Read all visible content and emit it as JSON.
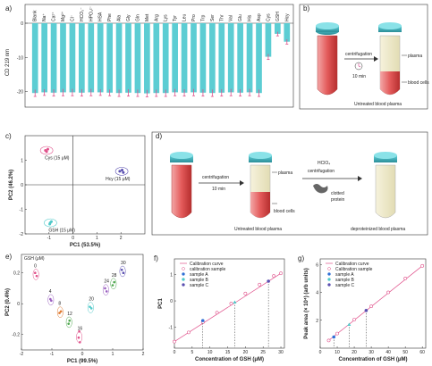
{
  "figure": {
    "panels": {
      "a": {
        "label": "a)"
      },
      "b": {
        "label": "b)",
        "text_centrifugation": "centrifugation",
        "text_time": "10 min",
        "text_plasma": "plasma",
        "text_cells": "blood cells",
        "caption": "Untreated blood plasma"
      },
      "c": {
        "label": "c)"
      },
      "d": {
        "label": "d)",
        "text_centrifugation": "centrifugation",
        "text_time": "10 min",
        "text_plasma": "plasma",
        "text_cells": "blood cells",
        "caption1": "Untreated blood plasma",
        "text_hclo4": "HClO₄",
        "text_centrifugation2": "centrifugation",
        "text_clotted": "clotted",
        "text_protein": "protein",
        "caption2": "deproteinized blood plasma"
      },
      "e": {
        "label": "e)"
      },
      "f": {
        "label": "f)"
      },
      "g": {
        "label": "g)"
      }
    }
  },
  "chart_data": [
    {
      "panel": "a",
      "type": "bar",
      "ylabel": "CD 219 nm",
      "categories": [
        "Blank",
        "Na⁺",
        "Ca²⁺",
        "Mg²⁺",
        "Cl⁻",
        "HCO₃⁻",
        "HPO₄²⁻",
        "HSA",
        "Phe",
        "Ala",
        "Gly",
        "Gln",
        "Met",
        "Arg",
        "Lys",
        "Tyr",
        "Leu",
        "Pro",
        "Trp",
        "Ser",
        "Thr",
        "Val",
        "Glu",
        "His",
        "Asp",
        "Cys",
        "GSH",
        "Hcy"
      ],
      "values": [
        -20.4,
        -20.2,
        -20.3,
        -20.2,
        -20.2,
        -20.3,
        -20.2,
        -20.2,
        -20.3,
        -20.4,
        -20.3,
        -20.4,
        -20.5,
        -20.4,
        -20.4,
        -20.2,
        -20.3,
        -20.2,
        -20.3,
        -20.4,
        -20.3,
        -20.2,
        -20.3,
        -20.2,
        -20.4,
        -9.8,
        -3.1,
        -5.4
      ],
      "errors": [
        1.0,
        0.9,
        1.0,
        1.0,
        1.0,
        1.0,
        1.0,
        0.9,
        0.9,
        1.0,
        1.0,
        1.0,
        1.0,
        1.0,
        1.0,
        1.0,
        1.0,
        1.0,
        1.0,
        1.0,
        1.0,
        1.0,
        1.0,
        1.0,
        1.0,
        0.8,
        0.6,
        0.7
      ],
      "ylim": [
        -24,
        0
      ],
      "yticks": [
        0,
        -10,
        -20
      ],
      "bar_color": "#5ccdd3",
      "error_color": "#e0508a"
    },
    {
      "panel": "c",
      "type": "scatter",
      "xlabel": "PC1 (53.5%)",
      "ylabel": "PC2 (46.2%)",
      "xlim": [
        -2,
        3
      ],
      "ylim": [
        -2,
        2
      ],
      "xticks": [
        -1,
        0,
        1,
        2
      ],
      "yticks": [
        -2,
        -1,
        0,
        1
      ],
      "groups": [
        {
          "name": "Cys (15 μM)",
          "color": "#e0508a",
          "points": [
            [
              -1.15,
              1.4
            ],
            [
              -1.05,
              1.45
            ],
            [
              -1.1,
              1.35
            ]
          ]
        },
        {
          "name": "Hcy (15 μM)",
          "color": "#5a4fb0",
          "points": [
            [
              1.95,
              0.55
            ],
            [
              2.05,
              0.6
            ],
            [
              2.1,
              0.5
            ]
          ]
        },
        {
          "name": "GSH (15 μM)",
          "color": "#4fc9c9",
          "points": [
            [
              -0.95,
              -1.55
            ],
            [
              -0.9,
              -1.5
            ],
            [
              -0.97,
              -1.6
            ]
          ]
        }
      ]
    },
    {
      "panel": "e",
      "type": "scatter",
      "title": "GSH (μM)",
      "xlabel": "PC1 (99.5%)",
      "ylabel": "PC2 (0.4%)",
      "xlim": [
        -2,
        2
      ],
      "ylim": [
        -0.3,
        0.32
      ],
      "xticks": [
        -2,
        -1,
        0,
        1,
        2
      ],
      "yticks": [
        -0.2,
        0.0,
        0.2
      ],
      "groups": [
        {
          "name": "0",
          "color": "#e0508a",
          "points": [
            [
              -1.55,
              0.2
            ],
            [
              -1.5,
              0.18
            ]
          ]
        },
        {
          "name": "4",
          "color": "#9a5fc0",
          "points": [
            [
              -1.05,
              0.03
            ],
            [
              -1.02,
              0.02
            ]
          ]
        },
        {
          "name": "8",
          "color": "#e07a30",
          "points": [
            [
              -0.75,
              -0.06
            ],
            [
              -0.7,
              -0.05
            ]
          ]
        },
        {
          "name": "12",
          "color": "#4fa84f",
          "points": [
            [
              -0.45,
              -0.13
            ],
            [
              -0.42,
              -0.11
            ]
          ]
        },
        {
          "name": "16",
          "color": "#e0508a",
          "points": [
            [
              -0.1,
              -0.18
            ],
            [
              -0.12,
              -0.22
            ],
            [
              -0.08,
              -0.25
            ]
          ]
        },
        {
          "name": "20",
          "color": "#4fc9c9",
          "points": [
            [
              0.25,
              -0.02
            ],
            [
              0.3,
              -0.03
            ]
          ]
        },
        {
          "name": "24",
          "color": "#9a5fc0",
          "points": [
            [
              0.75,
              0.1
            ],
            [
              0.8,
              0.08
            ]
          ]
        },
        {
          "name": "28",
          "color": "#4fa84f",
          "points": [
            [
              1.0,
              0.12
            ],
            [
              1.05,
              0.14
            ]
          ]
        },
        {
          "name": "30",
          "color": "#5a4fb0",
          "points": [
            [
              1.3,
              0.22
            ],
            [
              1.35,
              0.2
            ]
          ]
        }
      ]
    },
    {
      "panel": "f",
      "type": "scatter",
      "xlabel": "Concentration of GSH (μM)",
      "ylabel": "PC1",
      "xlim": [
        0,
        31
      ],
      "ylim": [
        -1.8,
        1.6
      ],
      "xticks": [
        0,
        5,
        10,
        15,
        20,
        25,
        30
      ],
      "yticks": [
        -1,
        0,
        1
      ],
      "legend": [
        "Calibration curve",
        "calibration sample",
        "sample A",
        "sample B",
        "sample C"
      ],
      "calibration_x": [
        0,
        4,
        8,
        12,
        16,
        20,
        24,
        28,
        30
      ],
      "calibration_y": [
        -1.55,
        -1.2,
        -0.82,
        -0.45,
        -0.1,
        0.28,
        0.62,
        0.95,
        1.05
      ],
      "sample_a": [
        [
          8.0,
          -0.75
        ]
      ],
      "sample_b": [
        [
          17.0,
          -0.05
        ]
      ],
      "sample_c": [
        [
          26.5,
          0.75
        ]
      ],
      "line_color": "#e0508a",
      "sample_a_color": "#2f6fd6",
      "sample_b_color": "#4fc9c9",
      "sample_c_color": "#5a4fb0"
    },
    {
      "panel": "g",
      "type": "scatter",
      "xlabel": "Concentration of GSH (μM)",
      "ylabel": "Peak area (× 10⁴) (arb units)",
      "xlim": [
        0,
        62
      ],
      "ylim": [
        0,
        6.4
      ],
      "xticks": [
        0,
        10,
        20,
        30,
        40,
        50,
        60
      ],
      "yticks": [
        2,
        4,
        6
      ],
      "legend": [
        "Calibration curve",
        "Calibration sample",
        "sample A",
        "sample B",
        "sample C"
      ],
      "calibration_x": [
        5,
        10,
        20,
        30,
        40,
        50,
        60
      ],
      "calibration_y": [
        0.55,
        1.05,
        2.05,
        3.0,
        4.0,
        5.0,
        5.9
      ],
      "sample_a": [
        [
          8.0,
          0.8
        ]
      ],
      "sample_b": [
        [
          17.0,
          1.7
        ]
      ],
      "sample_c": [
        [
          27.0,
          2.7
        ]
      ],
      "line_color": "#e0508a",
      "sample_a_color": "#2f6fd6",
      "sample_b_color": "#4fc9c9",
      "sample_c_color": "#5a4fb0"
    }
  ]
}
